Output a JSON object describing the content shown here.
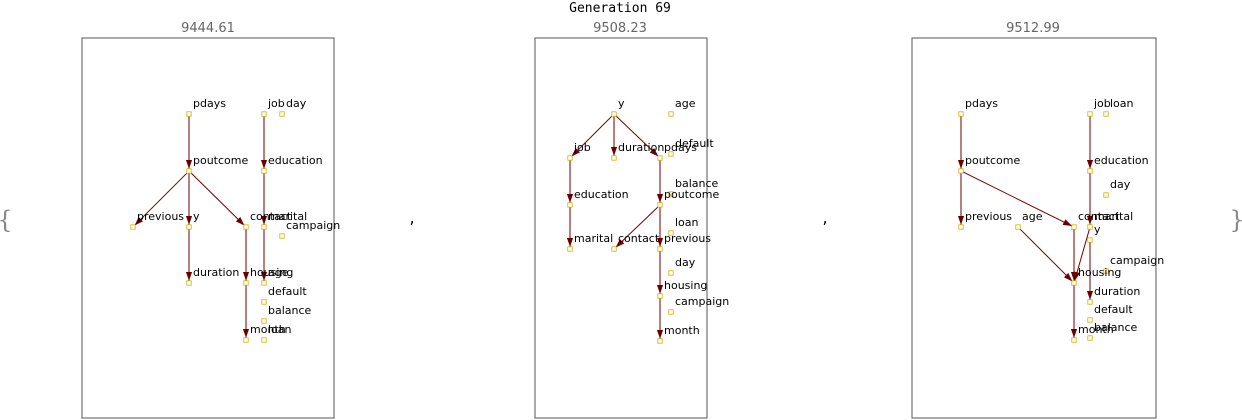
{
  "title": "Generation 69",
  "open_brace": "{",
  "close_brace": "}",
  "separator": ",",
  "networks": [
    {
      "score": "9444.61",
      "nodes": [
        {
          "id": "pdays",
          "label": "pdays"
        },
        {
          "id": "job",
          "label": "job"
        },
        {
          "id": "day",
          "label": "day"
        },
        {
          "id": "poutcome",
          "label": "poutcome"
        },
        {
          "id": "education",
          "label": "education"
        },
        {
          "id": "previous",
          "label": "previous"
        },
        {
          "id": "y",
          "label": "y"
        },
        {
          "id": "contact",
          "label": "contact"
        },
        {
          "id": "marital",
          "label": "marital"
        },
        {
          "id": "campaign",
          "label": "campaign"
        },
        {
          "id": "duration",
          "label": "duration"
        },
        {
          "id": "housing",
          "label": "housing"
        },
        {
          "id": "age",
          "label": "age"
        },
        {
          "id": "default",
          "label": "default"
        },
        {
          "id": "balance",
          "label": "balance"
        },
        {
          "id": "month",
          "label": "month"
        },
        {
          "id": "loan",
          "label": "loan"
        }
      ],
      "edges": [
        [
          "pdays",
          "poutcome"
        ],
        [
          "poutcome",
          "previous"
        ],
        [
          "poutcome",
          "y"
        ],
        [
          "poutcome",
          "contact"
        ],
        [
          "y",
          "duration"
        ],
        [
          "contact",
          "housing"
        ],
        [
          "housing",
          "month"
        ],
        [
          "job",
          "education"
        ],
        [
          "education",
          "marital"
        ],
        [
          "marital",
          "age"
        ]
      ]
    },
    {
      "score": "9508.23",
      "nodes": [
        {
          "id": "y",
          "label": "y"
        },
        {
          "id": "age",
          "label": "age"
        },
        {
          "id": "job",
          "label": "job"
        },
        {
          "id": "duration",
          "label": "duration"
        },
        {
          "id": "pdays",
          "label": "pdays"
        },
        {
          "id": "default",
          "label": "default"
        },
        {
          "id": "education",
          "label": "education"
        },
        {
          "id": "balance",
          "label": "balance"
        },
        {
          "id": "poutcome",
          "label": "poutcome"
        },
        {
          "id": "loan",
          "label": "loan"
        },
        {
          "id": "marital",
          "label": "marital"
        },
        {
          "id": "contact",
          "label": "contact"
        },
        {
          "id": "previous",
          "label": "previous"
        },
        {
          "id": "day",
          "label": "day"
        },
        {
          "id": "housing",
          "label": "housing"
        },
        {
          "id": "campaign",
          "label": "campaign"
        },
        {
          "id": "month",
          "label": "month"
        }
      ],
      "edges": [
        [
          "y",
          "job"
        ],
        [
          "y",
          "duration"
        ],
        [
          "y",
          "pdays"
        ],
        [
          "job",
          "education"
        ],
        [
          "education",
          "marital"
        ],
        [
          "pdays",
          "poutcome"
        ],
        [
          "poutcome",
          "contact"
        ],
        [
          "poutcome",
          "previous"
        ],
        [
          "previous",
          "housing"
        ],
        [
          "housing",
          "month"
        ]
      ]
    },
    {
      "score": "9512.99",
      "nodes": [
        {
          "id": "pdays",
          "label": "pdays"
        },
        {
          "id": "job",
          "label": "job"
        },
        {
          "id": "loan",
          "label": "loan"
        },
        {
          "id": "poutcome",
          "label": "poutcome"
        },
        {
          "id": "education",
          "label": "education"
        },
        {
          "id": "day",
          "label": "day"
        },
        {
          "id": "previous",
          "label": "previous"
        },
        {
          "id": "age",
          "label": "age"
        },
        {
          "id": "contact",
          "label": "contact"
        },
        {
          "id": "marital",
          "label": "marital"
        },
        {
          "id": "y",
          "label": "y"
        },
        {
          "id": "campaign",
          "label": "campaign"
        },
        {
          "id": "housing",
          "label": "housing"
        },
        {
          "id": "duration",
          "label": "duration"
        },
        {
          "id": "default",
          "label": "default"
        },
        {
          "id": "balance",
          "label": "balance"
        },
        {
          "id": "month",
          "label": "month"
        }
      ],
      "edges": [
        [
          "pdays",
          "poutcome"
        ],
        [
          "pdays",
          "previous"
        ],
        [
          "poutcome",
          "contact"
        ],
        [
          "age",
          "housing"
        ],
        [
          "contact",
          "housing"
        ],
        [
          "housing",
          "month"
        ],
        [
          "job",
          "education"
        ],
        [
          "education",
          "marital"
        ],
        [
          "marital",
          "housing"
        ],
        [
          "y",
          "duration"
        ]
      ]
    }
  ]
}
